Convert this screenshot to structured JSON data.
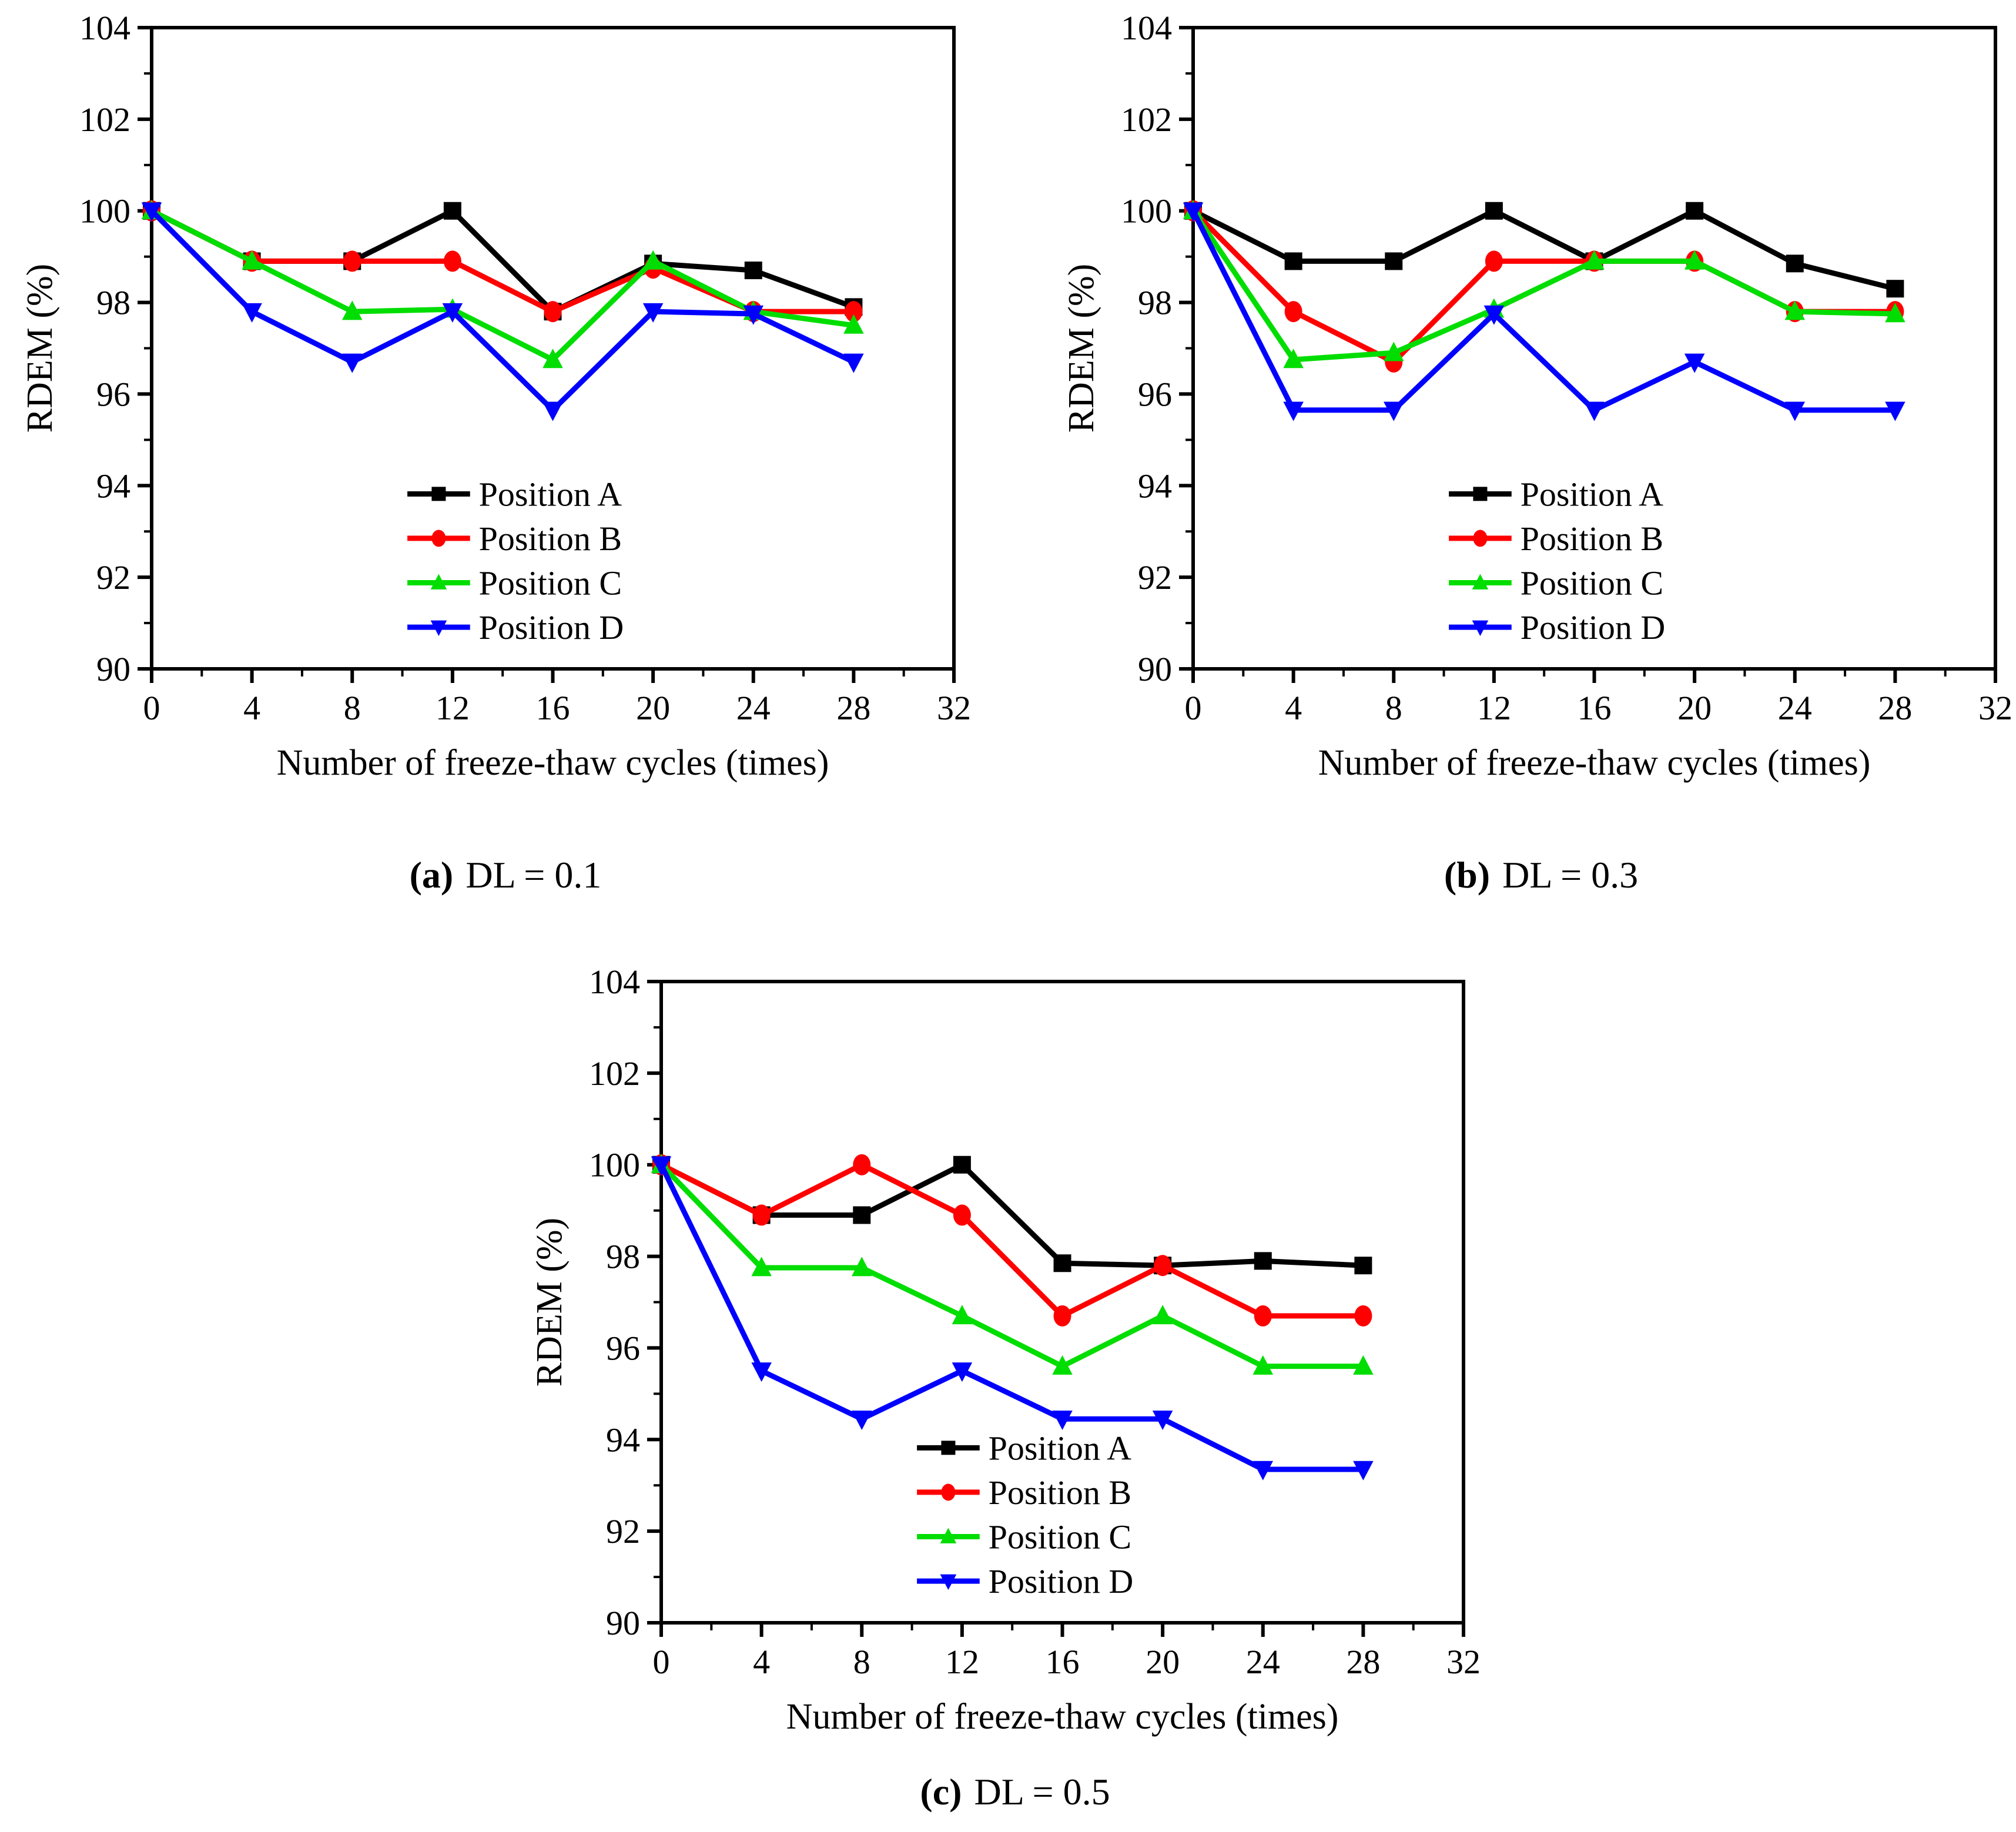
{
  "figure": {
    "background": "#ffffff",
    "xlabel": "Number of freeze-thaw cycles (times)",
    "ylabel": "RDEM (%)"
  },
  "colors": {
    "position_a": "#000000",
    "position_b": "#ff0000",
    "position_c": "#00dd00",
    "position_d": "#0000ff",
    "axis": "#000000"
  },
  "chart_data": [
    {
      "id": "a",
      "type": "line",
      "caption": {
        "label": "(a)",
        "text": "DL = 0.1"
      },
      "xlabel": "Number of freeze-thaw cycles (times)",
      "ylabel": "RDEM (%)",
      "xlim": [
        0,
        32
      ],
      "ylim": [
        90,
        104
      ],
      "xticks": [
        0,
        4,
        8,
        12,
        16,
        20,
        24,
        28,
        32
      ],
      "yticks": [
        90,
        92,
        94,
        96,
        98,
        100,
        102,
        104
      ],
      "legend_position": "inside-lower-middle",
      "x": [
        0,
        4,
        8,
        12,
        16,
        20,
        24,
        28
      ],
      "series": [
        {
          "name": "Position A",
          "color": "#000000",
          "marker": "square",
          "values": [
            100,
            98.9,
            98.9,
            100,
            97.8,
            98.85,
            98.7,
            97.9
          ]
        },
        {
          "name": "Position B",
          "color": "#ff0000",
          "marker": "circle",
          "values": [
            100,
            98.9,
            98.9,
            98.9,
            97.8,
            98.75,
            97.8,
            97.8
          ]
        },
        {
          "name": "Position C",
          "color": "#00dd00",
          "marker": "triangle-up",
          "values": [
            100,
            98.9,
            97.8,
            97.85,
            96.75,
            98.9,
            97.8,
            97.5
          ]
        },
        {
          "name": "Position D",
          "color": "#0000ff",
          "marker": "triangle-down",
          "values": [
            100,
            97.8,
            96.7,
            97.8,
            95.65,
            97.8,
            97.75,
            96.7
          ]
        }
      ]
    },
    {
      "id": "b",
      "type": "line",
      "caption": {
        "label": "(b)",
        "text": "DL = 0.3"
      },
      "xlabel": "Number of freeze-thaw cycles (times)",
      "ylabel": "RDEM (%)",
      "xlim": [
        0,
        32
      ],
      "ylim": [
        90,
        104
      ],
      "xticks": [
        0,
        4,
        8,
        12,
        16,
        20,
        24,
        28,
        32
      ],
      "yticks": [
        90,
        92,
        94,
        96,
        98,
        100,
        102,
        104
      ],
      "legend_position": "inside-lower-middle",
      "x": [
        0,
        4,
        8,
        12,
        16,
        20,
        24,
        28
      ],
      "series": [
        {
          "name": "Position A",
          "color": "#000000",
          "marker": "square",
          "values": [
            100,
            98.9,
            98.9,
            100,
            98.9,
            100,
            98.85,
            98.3
          ]
        },
        {
          "name": "Position B",
          "color": "#ff0000",
          "marker": "circle",
          "values": [
            100,
            97.8,
            96.7,
            98.9,
            98.9,
            98.9,
            97.8,
            97.8
          ]
        },
        {
          "name": "Position C",
          "color": "#00dd00",
          "marker": "triangle-up",
          "values": [
            100,
            96.75,
            96.9,
            97.85,
            98.9,
            98.9,
            97.8,
            97.75
          ]
        },
        {
          "name": "Position D",
          "color": "#0000ff",
          "marker": "triangle-down",
          "values": [
            100,
            95.65,
            95.65,
            97.75,
            95.65,
            96.7,
            95.65,
            95.65
          ]
        }
      ]
    },
    {
      "id": "c",
      "type": "line",
      "caption": {
        "label": "(c)",
        "text": "DL = 0.5"
      },
      "xlabel": "Number of freeze-thaw cycles (times)",
      "ylabel": "RDEM (%)",
      "xlim": [
        0,
        32
      ],
      "ylim": [
        90,
        104
      ],
      "xticks": [
        0,
        4,
        8,
        12,
        16,
        20,
        24,
        28,
        32
      ],
      "yticks": [
        90,
        92,
        94,
        96,
        98,
        100,
        102,
        104
      ],
      "legend_position": "inside-lower-middle",
      "x": [
        0,
        4,
        8,
        12,
        16,
        20,
        24,
        28
      ],
      "series": [
        {
          "name": "Position A",
          "color": "#000000",
          "marker": "square",
          "values": [
            100,
            98.9,
            98.9,
            100,
            97.85,
            97.8,
            97.9,
            97.8
          ]
        },
        {
          "name": "Position B",
          "color": "#ff0000",
          "marker": "circle",
          "values": [
            100,
            98.9,
            100,
            98.9,
            96.7,
            97.8,
            96.7,
            96.7
          ]
        },
        {
          "name": "Position C",
          "color": "#00dd00",
          "marker": "triangle-up",
          "values": [
            100,
            97.75,
            97.75,
            96.7,
            95.6,
            96.7,
            95.6,
            95.6
          ]
        },
        {
          "name": "Position D",
          "color": "#0000ff",
          "marker": "triangle-down",
          "values": [
            100,
            95.5,
            94.45,
            95.5,
            94.45,
            94.45,
            93.35,
            93.35
          ]
        }
      ]
    }
  ]
}
